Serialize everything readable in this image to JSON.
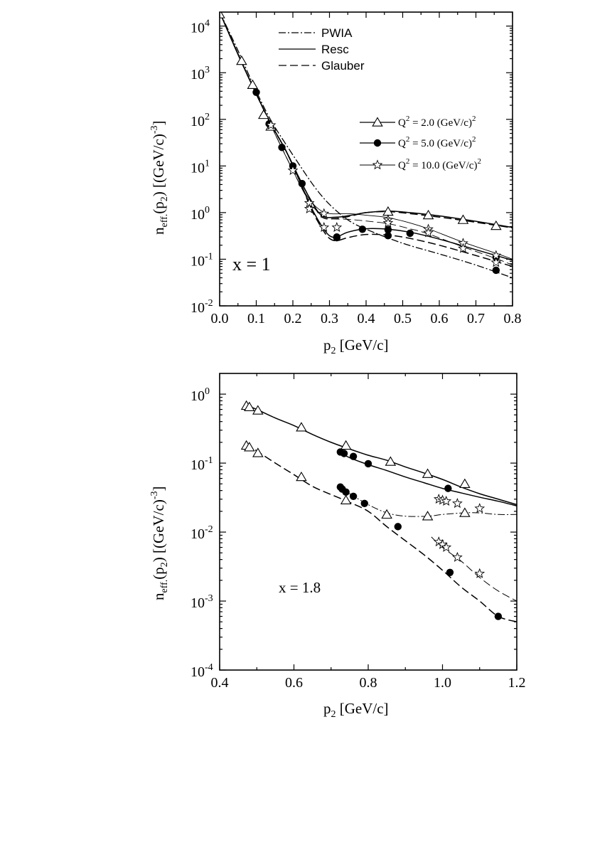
{
  "chart_data": [
    {
      "type": "line",
      "panel": "top",
      "annotation": "x = 1",
      "xlabel": "p",
      "xlabel_sub": "2",
      "xlabel_unit": " [GeV/c]",
      "ylabel": "n",
      "ylabel_sub": "eff.",
      "ylabel_mid": "(p",
      "ylabel_mid_sub": "2",
      "ylabel_end": ") [(GeV/c)",
      "ylabel_sup": "-3",
      "ylabel_close": "]",
      "xlim": [
        0,
        0.8
      ],
      "ylim_log10": [
        -2,
        4.3
      ],
      "yscale": "log",
      "x_ticks": [
        "0.0",
        "0.1",
        "0.2",
        "0.3",
        "0.4",
        "0.5",
        "0.6",
        "0.7",
        "0.8"
      ],
      "y_ticks": [
        {
          "base": "10",
          "exp": "-2"
        },
        {
          "base": "10",
          "exp": "-1"
        },
        {
          "base": "10",
          "exp": "0"
        },
        {
          "base": "10",
          "exp": "1"
        },
        {
          "base": "10",
          "exp": "2"
        },
        {
          "base": "10",
          "exp": "3"
        },
        {
          "base": "10",
          "exp": "4"
        }
      ],
      "legend_lines": [
        {
          "label": "PWIA",
          "style": "dashdot"
        },
        {
          "label": "Resc",
          "style": "solid"
        },
        {
          "label": "Glauber",
          "style": "dashed"
        }
      ],
      "legend_markers": [
        {
          "label_base": "Q",
          "label_sup": "2",
          "label_rest": " = 2.0 (GeV/c)",
          "label_sup2": "2",
          "marker": "triangle"
        },
        {
          "label_base": "Q",
          "label_sup": "2",
          "label_rest": " = 5.0 (GeV/c)",
          "label_sup2": "2",
          "marker": "circle"
        },
        {
          "label_base": "Q",
          "label_sup": "2",
          "label_rest": " = 10.0 (GeV/c)",
          "label_sup2": "2",
          "marker": "star"
        }
      ],
      "series": [
        {
          "name": "PWIA",
          "style": "dashdot",
          "width": 1.3,
          "x": [
            0,
            0.05,
            0.1,
            0.14,
            0.18,
            0.22,
            0.26,
            0.3,
            0.35,
            0.4,
            0.5,
            0.6,
            0.7,
            0.8
          ],
          "y": [
            20000,
            3000,
            400,
            95,
            30,
            10,
            3.5,
            1.5,
            0.7,
            0.44,
            0.22,
            0.13,
            0.075,
            0.04
          ]
        },
        {
          "name": "Glauber Q2=2.0",
          "style": "dashed",
          "width": 1.5,
          "x": [
            0,
            0.05,
            0.1,
            0.14,
            0.18,
            0.22,
            0.25,
            0.28,
            0.32,
            0.36,
            0.4,
            0.46,
            0.52,
            0.6,
            0.7,
            0.8
          ],
          "y": [
            20000,
            2500,
            350,
            80,
            22,
            5,
            1.8,
            0.8,
            0.75,
            0.85,
            1.0,
            1.05,
            0.95,
            0.8,
            0.62,
            0.47
          ]
        },
        {
          "name": "Resc Q2=2.0",
          "style": "solid",
          "width": 1.5,
          "x": [
            0,
            0.05,
            0.1,
            0.14,
            0.18,
            0.22,
            0.25,
            0.28,
            0.32,
            0.36,
            0.4,
            0.46,
            0.52,
            0.6,
            0.7,
            0.8
          ],
          "y": [
            20000,
            2500,
            350,
            80,
            22,
            5,
            1.8,
            0.85,
            0.8,
            0.88,
            1.0,
            1.08,
            1.0,
            0.85,
            0.65,
            0.48
          ]
        },
        {
          "name": "Resc Q2=5.0",
          "style": "solid",
          "width": 1.5,
          "x": [
            0,
            0.05,
            0.1,
            0.14,
            0.18,
            0.22,
            0.25,
            0.28,
            0.3,
            0.32,
            0.35,
            0.4,
            0.46,
            0.52,
            0.6,
            0.7,
            0.8
          ],
          "y": [
            20000,
            2500,
            350,
            80,
            22,
            4.5,
            1.3,
            0.5,
            0.32,
            0.3,
            0.38,
            0.45,
            0.44,
            0.38,
            0.27,
            0.16,
            0.095
          ]
        },
        {
          "name": "Glauber Q2=5.0",
          "style": "dashed",
          "width": 1.5,
          "x": [
            0,
            0.05,
            0.1,
            0.14,
            0.18,
            0.22,
            0.25,
            0.28,
            0.3,
            0.32,
            0.35,
            0.4,
            0.46,
            0.52,
            0.6,
            0.7,
            0.8
          ],
          "y": [
            20000,
            2500,
            350,
            80,
            22,
            4.5,
            1.2,
            0.45,
            0.28,
            0.25,
            0.29,
            0.34,
            0.33,
            0.28,
            0.2,
            0.12,
            0.07
          ]
        },
        {
          "name": "Resc Q2=10.0",
          "style": "solid",
          "width": 0.9,
          "x": [
            0,
            0.1,
            0.2,
            0.24,
            0.27,
            0.3,
            0.35,
            0.4,
            0.46,
            0.52,
            0.57,
            0.66,
            0.76,
            0.8
          ],
          "y": [
            20000,
            350,
            8,
            2.2,
            1.2,
            0.95,
            0.95,
            0.88,
            0.78,
            0.6,
            0.45,
            0.24,
            0.13,
            0.1
          ]
        },
        {
          "name": "Glauber Q2=10.0",
          "style": "dashed",
          "width": 0.9,
          "x": [
            0,
            0.1,
            0.2,
            0.24,
            0.27,
            0.3,
            0.35,
            0.4,
            0.46,
            0.52,
            0.57,
            0.66,
            0.76,
            0.8
          ],
          "y": [
            20000,
            350,
            8,
            2,
            1.0,
            0.75,
            0.72,
            0.66,
            0.58,
            0.45,
            0.35,
            0.19,
            0.1,
            0.075
          ]
        }
      ],
      "markers": [
        {
          "marker": "triangle",
          "x": [
            0,
            0.06,
            0.09,
            0.12,
            0.14,
            0.46,
            0.57,
            0.665,
            0.755
          ],
          "y": [
            18000,
            1800,
            550,
            125,
            70,
            1.05,
            0.88,
            0.7,
            0.52
          ]
        },
        {
          "marker": "circle",
          "x": [
            0.1,
            0.135,
            0.17,
            0.2,
            0.225,
            0.32,
            0.39,
            0.46,
            0.52,
            0.755
          ],
          "y": [
            380,
            80,
            25,
            10,
            4.2,
            0.29,
            0.44,
            0.43,
            0.36,
            0.11
          ]
        },
        {
          "marker": "circle",
          "x": [
            0.32,
            0.46,
            0.755
          ],
          "y": [
            0.3,
            0.32,
            0.058
          ]
        },
        {
          "marker": "star",
          "x": [
            0.14,
            0.2,
            0.245,
            0.285,
            0.32,
            0.46,
            0.57,
            0.665,
            0.755
          ],
          "y": [
            75,
            8,
            1.6,
            0.95,
            0.48,
            0.7,
            0.44,
            0.22,
            0.12
          ]
        },
        {
          "marker": "star",
          "x": [
            0.245,
            0.285,
            0.46,
            0.57,
            0.665,
            0.755
          ],
          "y": [
            1.2,
            0.48,
            0.6,
            0.37,
            0.17,
            0.085
          ]
        }
      ]
    },
    {
      "type": "line",
      "panel": "bottom",
      "annotation": "x = 1.8",
      "xlabel": "p",
      "xlabel_sub": "2",
      "xlabel_unit": " [GeV/c]",
      "ylabel": "n",
      "ylabel_sub": "eff.",
      "ylabel_mid": "(p",
      "ylabel_mid_sub": "2",
      "ylabel_end": ") [(GeV/c)",
      "ylabel_sup": "-3",
      "ylabel_close": "]",
      "xlim": [
        0.4,
        1.2
      ],
      "ylim_log10": [
        -4,
        0.3
      ],
      "yscale": "log",
      "x_ticks": [
        "0.4",
        "0.6",
        "0.8",
        "1.0",
        "1.2"
      ],
      "y_ticks": [
        {
          "base": "10",
          "exp": "-4"
        },
        {
          "base": "10",
          "exp": "-3"
        },
        {
          "base": "10",
          "exp": "-2"
        },
        {
          "base": "10",
          "exp": "-1"
        },
        {
          "base": "10",
          "exp": "0"
        }
      ],
      "series": [
        {
          "name": "Resc Q2=2.0",
          "style": "solid",
          "width": 1.5,
          "x": [
            0.47,
            0.5,
            0.55,
            0.6,
            0.65,
            0.7,
            0.75,
            0.8,
            0.85,
            0.9,
            0.95,
            1.0,
            1.05,
            1.1,
            1.15,
            1.2
          ],
          "y": [
            0.7,
            0.6,
            0.45,
            0.35,
            0.26,
            0.2,
            0.16,
            0.13,
            0.11,
            0.088,
            0.072,
            0.058,
            0.045,
            0.036,
            0.03,
            0.025
          ]
        },
        {
          "name": "Resc Q2=5.0",
          "style": "solid",
          "width": 1.5,
          "x": [
            0.72,
            0.75,
            0.8,
            0.85,
            0.9,
            0.95,
            1.0,
            1.05,
            1.1,
            1.15,
            1.2
          ],
          "y": [
            0.145,
            0.12,
            0.095,
            0.078,
            0.063,
            0.052,
            0.043,
            0.037,
            0.032,
            0.028,
            0.024
          ]
        },
        {
          "name": "Glauber Q2=2.0",
          "style": "dashed",
          "width": 1.5,
          "x": [
            0.47,
            0.5,
            0.55,
            0.6,
            0.65,
            0.7,
            0.75,
            0.8,
            0.85,
            0.9,
            0.95,
            1.0,
            1.05,
            1.1,
            1.15,
            1.2
          ],
          "y": [
            0.19,
            0.15,
            0.1,
            0.068,
            0.046,
            0.035,
            0.027,
            0.02,
            0.012,
            0.0075,
            0.0047,
            0.0028,
            0.0016,
            0.001,
            0.0006,
            0.0005
          ]
        },
        {
          "name": "Glauber Q2=5.0",
          "style": "dashdot",
          "width": 1.0,
          "x": [
            0.72,
            0.75,
            0.8,
            0.85,
            0.9,
            0.96,
            1.0,
            1.06,
            1.1,
            1.15,
            1.2
          ],
          "y": [
            0.045,
            0.036,
            0.025,
            0.019,
            0.017,
            0.017,
            0.018,
            0.019,
            0.019,
            0.018,
            0.018
          ]
        },
        {
          "name": "Glauber Q2=10.0",
          "style": "dashed",
          "width": 1.0,
          "x": [
            0.97,
            1.0,
            1.05,
            1.1,
            1.15,
            1.2
          ],
          "y": [
            0.0085,
            0.006,
            0.0038,
            0.0022,
            0.0014,
            0.001
          ]
        }
      ],
      "markers": [
        {
          "marker": "triangle",
          "x": [
            0.472,
            0.48,
            0.503,
            0.62,
            0.74,
            0.86,
            0.96,
            1.06
          ],
          "y": [
            0.68,
            0.65,
            0.58,
            0.33,
            0.18,
            0.105,
            0.07,
            0.05
          ]
        },
        {
          "marker": "triangle",
          "x": [
            0.472,
            0.48,
            0.503,
            0.62,
            0.74,
            0.85,
            0.96,
            1.06
          ],
          "y": [
            0.18,
            0.17,
            0.14,
            0.063,
            0.029,
            0.018,
            0.017,
            0.019
          ]
        },
        {
          "marker": "circle",
          "x": [
            0.725,
            0.735,
            0.76,
            0.8,
            1.015
          ],
          "y": [
            0.145,
            0.138,
            0.125,
            0.098,
            0.043
          ]
        },
        {
          "marker": "circle",
          "x": [
            0.725,
            0.73,
            0.74,
            0.76,
            0.79,
            0.88,
            1.02,
            1.15
          ],
          "y": [
            0.045,
            0.042,
            0.038,
            0.033,
            0.026,
            0.012,
            0.0026,
            0.0006
          ]
        },
        {
          "marker": "star",
          "x": [
            0.99,
            1.0,
            1.01,
            1.04,
            1.1
          ],
          "y": [
            0.03,
            0.029,
            0.028,
            0.026,
            0.022
          ]
        },
        {
          "marker": "star",
          "x": [
            0.99,
            1.0,
            1.01,
            1.04,
            1.1
          ],
          "y": [
            0.0072,
            0.0066,
            0.006,
            0.0043,
            0.0025
          ]
        }
      ]
    }
  ]
}
